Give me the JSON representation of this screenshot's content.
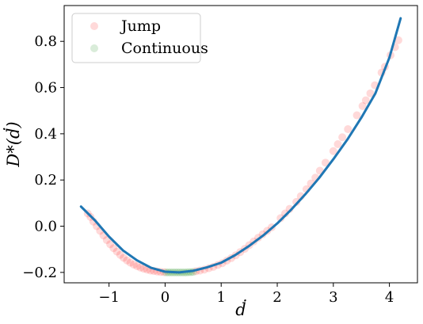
{
  "chart_data": {
    "type": "scatter",
    "xlabel": "ḋ",
    "ylabel": "D*(ḋ)",
    "xlim": [
      -1.8,
      4.5
    ],
    "ylim": [
      -0.245,
      0.955
    ],
    "xticks": [
      -1,
      0,
      1,
      2,
      3,
      4
    ],
    "xtick_labels": [
      "−1",
      "0",
      "1",
      "2",
      "3",
      "4"
    ],
    "yticks": [
      -0.2,
      0.0,
      0.2,
      0.4,
      0.6,
      0.8
    ],
    "ytick_labels": [
      "−0.2",
      "0.0",
      "0.2",
      "0.4",
      "0.6",
      "0.8"
    ],
    "grid": false,
    "legend": {
      "placement": "top-left"
    },
    "series": [
      {
        "name": "Jump",
        "kind": "scatter",
        "color": "#ff0000",
        "alpha": 0.15,
        "x": [
          -1.38,
          -1.33,
          -1.28,
          -1.22,
          -1.16,
          -1.1,
          -1.04,
          -0.98,
          -0.92,
          -0.86,
          -0.8,
          -0.74,
          -0.68,
          -0.62,
          -0.56,
          -0.5,
          -0.44,
          -0.38,
          -0.32,
          -0.26,
          -0.2,
          -0.14,
          -0.08,
          -0.02,
          0.55,
          0.62,
          0.7,
          0.78,
          0.86,
          0.94,
          1.02,
          1.1,
          1.18,
          1.26,
          1.34,
          1.42,
          1.5,
          1.58,
          1.66,
          1.74,
          1.82,
          1.9,
          2.06,
          2.14,
          2.22,
          2.34,
          2.42,
          2.52,
          2.6,
          2.68,
          2.76,
          2.86,
          3.0,
          3.08,
          3.16,
          3.26,
          3.42,
          3.52,
          3.58,
          3.66,
          3.74,
          3.86,
          3.92,
          4.02,
          4.1,
          4.16
        ],
        "y": [
          0.055,
          0.04,
          0.02,
          0.0,
          -0.02,
          -0.04,
          -0.06,
          -0.078,
          -0.095,
          -0.11,
          -0.124,
          -0.137,
          -0.148,
          -0.158,
          -0.166,
          -0.173,
          -0.179,
          -0.184,
          -0.188,
          -0.192,
          -0.194,
          -0.196,
          -0.198,
          -0.199,
          -0.195,
          -0.192,
          -0.188,
          -0.182,
          -0.176,
          -0.168,
          -0.16,
          -0.149,
          -0.138,
          -0.126,
          -0.112,
          -0.098,
          -0.082,
          -0.066,
          -0.05,
          -0.035,
          -0.02,
          -0.005,
          0.035,
          0.055,
          0.075,
          0.105,
          0.13,
          0.16,
          0.185,
          0.21,
          0.24,
          0.275,
          0.325,
          0.355,
          0.385,
          0.42,
          0.48,
          0.52,
          0.545,
          0.575,
          0.61,
          0.665,
          0.69,
          0.74,
          0.775,
          0.805
        ]
      },
      {
        "name": "Continuous",
        "kind": "scatter",
        "color": "#008000",
        "alpha": 0.15,
        "x": [
          0.02,
          0.06,
          0.1,
          0.14,
          0.18,
          0.22,
          0.26,
          0.3,
          0.34,
          0.38,
          0.42,
          0.46,
          0.5
        ],
        "y": [
          -0.2,
          -0.2,
          -0.2,
          -0.2,
          -0.2,
          -0.2,
          -0.2,
          -0.2,
          -0.2,
          -0.2,
          -0.199,
          -0.199,
          -0.198
        ]
      },
      {
        "kind": "line",
        "color": "#1f77b4",
        "x": [
          -1.5,
          -1.25,
          -1.0,
          -0.75,
          -0.5,
          -0.25,
          0.0,
          0.25,
          0.5,
          0.75,
          1.0,
          1.25,
          1.5,
          1.75,
          2.0,
          2.25,
          2.5,
          2.75,
          3.0,
          3.25,
          3.5,
          3.75,
          4.0,
          4.2
        ],
        "y": [
          0.085,
          0.025,
          -0.045,
          -0.105,
          -0.148,
          -0.18,
          -0.197,
          -0.2,
          -0.193,
          -0.178,
          -0.158,
          -0.125,
          -0.085,
          -0.04,
          0.012,
          0.072,
          0.138,
          0.21,
          0.29,
          0.375,
          0.47,
          0.575,
          0.73,
          0.9
        ]
      }
    ]
  }
}
